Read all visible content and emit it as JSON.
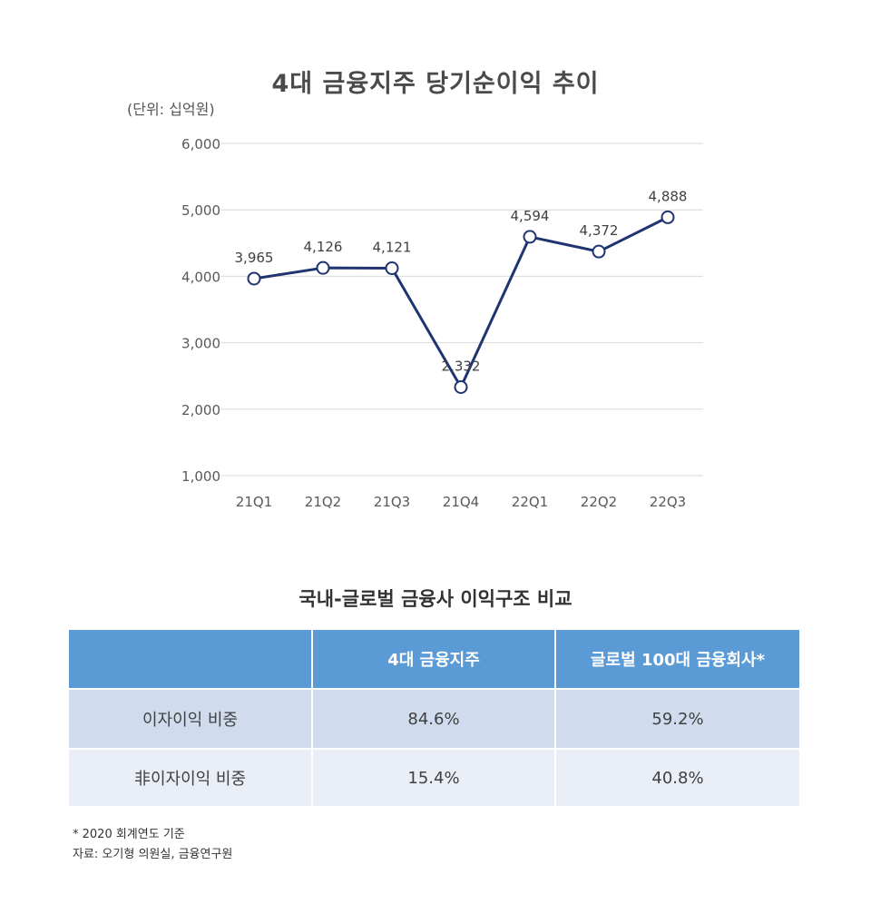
{
  "chart_data": {
    "type": "line",
    "title": "4대 금융지주 당기순이익 추이",
    "unit_label": "(단위: 십억원)",
    "categories": [
      "21Q1",
      "21Q2",
      "21Q3",
      "21Q4",
      "22Q1",
      "22Q2",
      "22Q3"
    ],
    "series": [
      {
        "values": [
          3965,
          4126,
          4121,
          2332,
          4594,
          4372,
          4888
        ]
      }
    ],
    "data_labels": [
      "3,965",
      "4,126",
      "4,121",
      "2,332",
      "4,594",
      "4,372",
      "4,888"
    ],
    "y_ticks": [
      "1,000",
      "2,000",
      "3,000",
      "4,000",
      "5,000",
      "6,000"
    ],
    "y_tick_values": [
      1000,
      2000,
      3000,
      4000,
      5000,
      6000
    ],
    "ylim": [
      1000,
      6000
    ],
    "grid": true,
    "line_color": "#1f3470",
    "marker_fill": "#ffffff"
  },
  "table": {
    "title": "국내-글로벌 금융사 이익구조 비교",
    "headers": [
      "",
      "4대 금융지주",
      "글로벌 100대 금융회사*"
    ],
    "rows": [
      {
        "label": "이자이익 비중",
        "values": [
          "84.6%",
          "59.2%"
        ]
      },
      {
        "label": "非이자이익 비중",
        "values": [
          "15.4%",
          "40.8%"
        ]
      }
    ],
    "header_color": "#5b9bd5"
  },
  "footnotes": {
    "note": "* 2020 회계연도 기준",
    "source": "자료: 오기형 의원실, 금융연구원"
  }
}
